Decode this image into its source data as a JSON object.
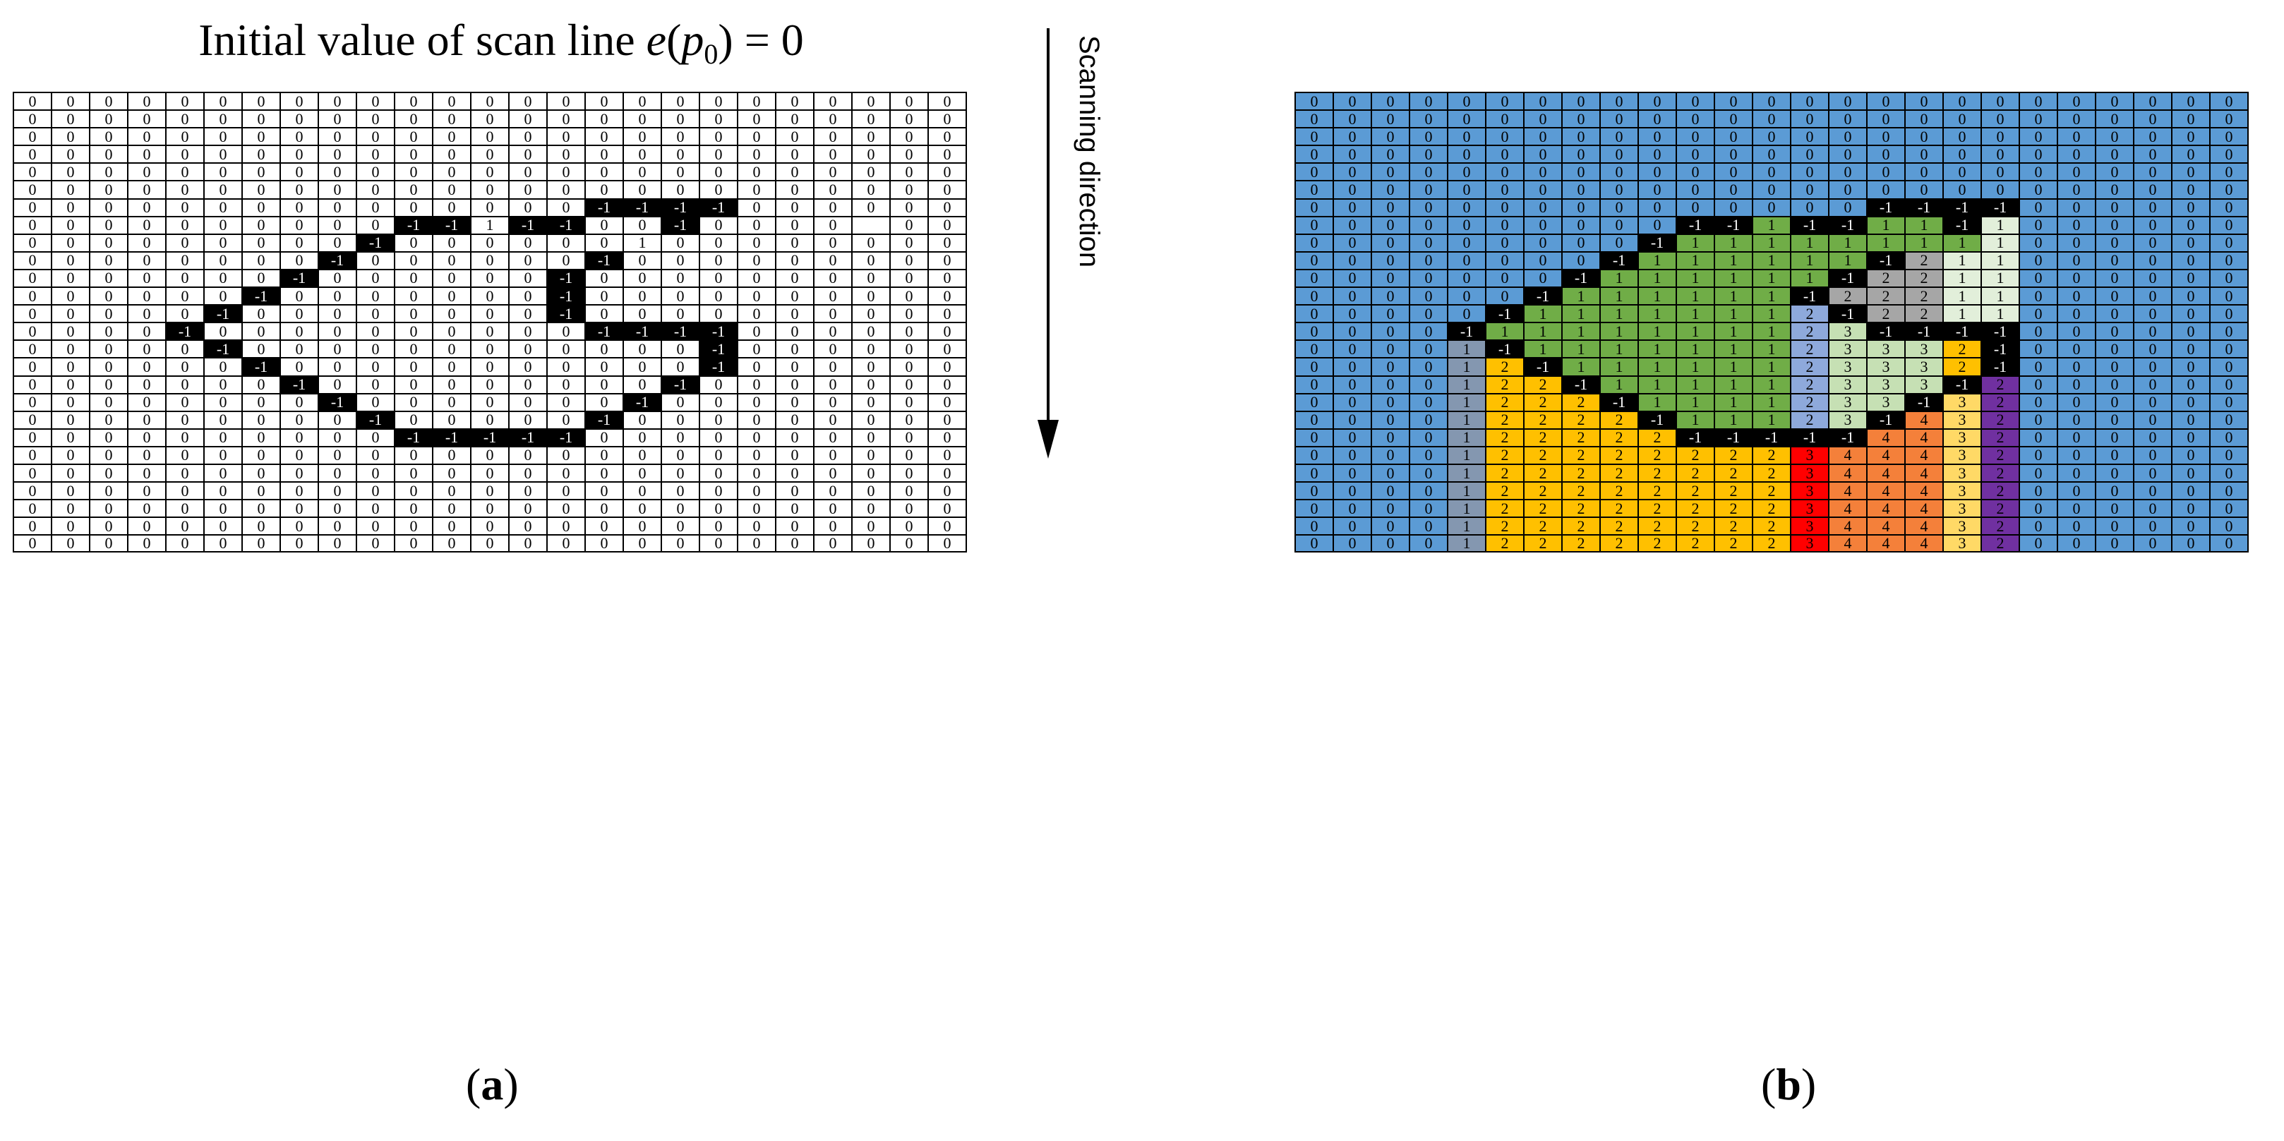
{
  "title": {
    "prefix": "Initial value of scan line ",
    "func": "e",
    "open": "(",
    "var": "p",
    "sub": "0",
    "close": ")",
    "suffix": " = 0"
  },
  "scan_label": "Scanning direction",
  "captions": {
    "a_open": "(",
    "a_letter": "a",
    "a_close": ")",
    "b_open": "(",
    "b_letter": "b",
    "b_close": ")"
  },
  "colors": {
    "-1": {
      "bg": "#000000",
      "fg": "#ffffff"
    },
    "0": {
      "bg": "#5b9bd5",
      "fg": "#000000"
    },
    "1": {
      "bg": "#70ad47",
      "fg": "#000000"
    },
    "1w": {
      "bg": "#e2efda",
      "fg": "#000000"
    },
    "1g": {
      "bg": "#8497b0",
      "fg": "#000000"
    },
    "2": {
      "bg": "#ffc000",
      "fg": "#000000"
    },
    "2g": {
      "bg": "#a6a6a6",
      "fg": "#000000"
    },
    "2l": {
      "bg": "#8ea9db",
      "fg": "#000000"
    },
    "2p": {
      "bg": "#7030a0",
      "fg": "#000000"
    },
    "3": {
      "bg": "#c6e0b4",
      "fg": "#000000"
    },
    "3r": {
      "bg": "#ff0000",
      "fg": "#000000"
    },
    "3y": {
      "bg": "#ffd966",
      "fg": "#000000"
    },
    "4": {
      "bg": "#f4803a",
      "fg": "#000000"
    }
  },
  "grid_a": [
    [
      0,
      0,
      0,
      0,
      0,
      0,
      0,
      0,
      0,
      0,
      0,
      0,
      0,
      0,
      0,
      0,
      0,
      0,
      0,
      0,
      0,
      0,
      0,
      0,
      0
    ],
    [
      0,
      0,
      0,
      0,
      0,
      0,
      0,
      0,
      0,
      0,
      0,
      0,
      0,
      0,
      0,
      0,
      0,
      0,
      0,
      0,
      0,
      0,
      0,
      0,
      0
    ],
    [
      0,
      0,
      0,
      0,
      0,
      0,
      0,
      0,
      0,
      0,
      0,
      0,
      0,
      0,
      0,
      0,
      0,
      0,
      0,
      0,
      0,
      0,
      0,
      0,
      0
    ],
    [
      0,
      0,
      0,
      0,
      0,
      0,
      0,
      0,
      0,
      0,
      0,
      0,
      0,
      0,
      0,
      0,
      0,
      0,
      0,
      0,
      0,
      0,
      0,
      0,
      0
    ],
    [
      0,
      0,
      0,
      0,
      0,
      0,
      0,
      0,
      0,
      0,
      0,
      0,
      0,
      0,
      0,
      0,
      0,
      0,
      0,
      0,
      0,
      0,
      0,
      0,
      0
    ],
    [
      0,
      0,
      0,
      0,
      0,
      0,
      0,
      0,
      0,
      0,
      0,
      0,
      0,
      0,
      0,
      0,
      0,
      0,
      0,
      0,
      0,
      0,
      0,
      0,
      0
    ],
    [
      0,
      0,
      0,
      0,
      0,
      0,
      0,
      0,
      0,
      0,
      0,
      0,
      0,
      0,
      0,
      -1,
      -1,
      -1,
      -1,
      0,
      0,
      0,
      0,
      0,
      0
    ],
    [
      0,
      0,
      0,
      0,
      0,
      0,
      0,
      0,
      0,
      0,
      -1,
      -1,
      1,
      -1,
      -1,
      0,
      0,
      -1,
      0,
      0,
      0,
      0,
      "",
      0,
      0
    ],
    [
      0,
      0,
      0,
      0,
      0,
      0,
      0,
      0,
      0,
      -1,
      0,
      0,
      0,
      0,
      0,
      0,
      1,
      0,
      0,
      0,
      0,
      0,
      0,
      0,
      0
    ],
    [
      0,
      0,
      0,
      0,
      0,
      0,
      0,
      0,
      -1,
      0,
      0,
      0,
      0,
      0,
      0,
      -1,
      0,
      0,
      0,
      0,
      0,
      0,
      0,
      0,
      0
    ],
    [
      0,
      0,
      0,
      0,
      0,
      0,
      0,
      -1,
      0,
      0,
      0,
      0,
      0,
      0,
      -1,
      0,
      0,
      0,
      0,
      0,
      0,
      0,
      0,
      0,
      0
    ],
    [
      0,
      0,
      0,
      0,
      0,
      0,
      -1,
      0,
      0,
      0,
      0,
      0,
      0,
      0,
      -1,
      0,
      0,
      0,
      0,
      0,
      0,
      0,
      0,
      0,
      0
    ],
    [
      0,
      0,
      0,
      0,
      0,
      -1,
      0,
      0,
      0,
      0,
      0,
      0,
      0,
      0,
      -1,
      0,
      0,
      0,
      0,
      0,
      0,
      0,
      0,
      0,
      0
    ],
    [
      0,
      0,
      0,
      0,
      -1,
      0,
      0,
      0,
      0,
      0,
      0,
      0,
      0,
      0,
      0,
      -1,
      -1,
      -1,
      -1,
      0,
      0,
      0,
      0,
      0,
      0
    ],
    [
      0,
      0,
      0,
      0,
      0,
      -1,
      0,
      0,
      0,
      0,
      0,
      0,
      0,
      0,
      0,
      0,
      0,
      0,
      -1,
      0,
      0,
      0,
      0,
      0,
      0
    ],
    [
      0,
      0,
      0,
      0,
      0,
      0,
      -1,
      0,
      0,
      0,
      0,
      0,
      0,
      0,
      0,
      0,
      0,
      0,
      -1,
      0,
      0,
      0,
      0,
      0,
      0
    ],
    [
      0,
      0,
      0,
      0,
      0,
      0,
      0,
      -1,
      0,
      0,
      0,
      0,
      0,
      0,
      0,
      0,
      0,
      -1,
      0,
      0,
      0,
      0,
      0,
      0,
      0
    ],
    [
      0,
      0,
      0,
      0,
      0,
      0,
      0,
      0,
      -1,
      0,
      0,
      0,
      0,
      0,
      0,
      0,
      -1,
      0,
      0,
      0,
      0,
      0,
      0,
      0,
      0
    ],
    [
      0,
      0,
      0,
      0,
      0,
      0,
      0,
      0,
      0,
      -1,
      0,
      0,
      0,
      0,
      0,
      -1,
      0,
      0,
      0,
      0,
      0,
      0,
      0,
      0,
      0
    ],
    [
      0,
      0,
      0,
      0,
      0,
      0,
      0,
      0,
      0,
      0,
      -1,
      -1,
      -1,
      -1,
      -1,
      0,
      0,
      0,
      0,
      0,
      0,
      0,
      0,
      0,
      0
    ],
    [
      0,
      0,
      0,
      0,
      0,
      0,
      0,
      0,
      0,
      0,
      0,
      0,
      0,
      0,
      0,
      0,
      0,
      0,
      0,
      0,
      0,
      0,
      0,
      0,
      0
    ],
    [
      0,
      0,
      0,
      0,
      0,
      0,
      0,
      0,
      0,
      0,
      0,
      0,
      0,
      0,
      0,
      0,
      0,
      0,
      0,
      0,
      0,
      0,
      0,
      0,
      0
    ],
    [
      0,
      0,
      0,
      0,
      0,
      0,
      0,
      0,
      0,
      0,
      0,
      0,
      0,
      0,
      0,
      0,
      0,
      0,
      0,
      0,
      0,
      0,
      0,
      0,
      0
    ],
    [
      0,
      0,
      0,
      0,
      0,
      0,
      0,
      0,
      0,
      0,
      0,
      0,
      0,
      0,
      0,
      0,
      0,
      0,
      0,
      0,
      0,
      0,
      0,
      0,
      0
    ],
    [
      0,
      0,
      0,
      0,
      0,
      0,
      0,
      0,
      0,
      0,
      0,
      0,
      0,
      0,
      0,
      0,
      0,
      0,
      0,
      0,
      0,
      0,
      0,
      0,
      0
    ],
    [
      0,
      0,
      0,
      0,
      0,
      0,
      0,
      0,
      0,
      0,
      0,
      0,
      0,
      0,
      0,
      0,
      0,
      0,
      0,
      0,
      0,
      0,
      0,
      0,
      0
    ]
  ],
  "grid_b": [
    [
      "0",
      "0",
      "0",
      "0",
      "0",
      "0",
      "0",
      "0",
      "0",
      "0",
      "0",
      "0",
      "0",
      "0",
      "0",
      "0",
      "0",
      "0",
      "0",
      "0",
      "0",
      "0",
      "0",
      "0",
      "0"
    ],
    [
      "0",
      "0",
      "0",
      "0",
      "0",
      "0",
      "0",
      "0",
      "0",
      "0",
      "0",
      "0",
      "0",
      "0",
      "0",
      "0",
      "0",
      "0",
      "0",
      "0",
      "0",
      "0",
      "0",
      "0",
      "0"
    ],
    [
      "0",
      "0",
      "0",
      "0",
      "0",
      "0",
      "0",
      "0",
      "0",
      "0",
      "0",
      "0",
      "0",
      "0",
      "0",
      "0",
      "0",
      "0",
      "0",
      "0",
      "0",
      "0",
      "0",
      "0",
      "0"
    ],
    [
      "0",
      "0",
      "0",
      "0",
      "0",
      "0",
      "0",
      "0",
      "0",
      "0",
      "0",
      "0",
      "0",
      "0",
      "0",
      "0",
      "0",
      "0",
      "0",
      "0",
      "0",
      "0",
      "0",
      "0",
      "0"
    ],
    [
      "0",
      "0",
      "0",
      "0",
      "0",
      "0",
      "0",
      "0",
      "0",
      "0",
      "0",
      "0",
      "0",
      "0",
      "0",
      "0",
      "0",
      "0",
      "0",
      "0",
      "0",
      "0",
      "0",
      "0",
      "0"
    ],
    [
      "0",
      "0",
      "0",
      "0",
      "0",
      "0",
      "0",
      "0",
      "0",
      "0",
      "0",
      "0",
      "0",
      "0",
      "0",
      "0",
      "0",
      "0",
      "0",
      "0",
      "0",
      "0",
      "0",
      "0",
      "0"
    ],
    [
      "0",
      "0",
      "0",
      "0",
      "0",
      "0",
      "0",
      "0",
      "0",
      "0",
      "0",
      "0",
      "0",
      "0",
      "0",
      "-1",
      "-1",
      "-1",
      "-1",
      "0",
      "0",
      "0",
      "0",
      "0",
      "0"
    ],
    [
      "0",
      "0",
      "0",
      "0",
      "0",
      "0",
      "0",
      "0",
      "0",
      "0",
      "-1",
      "-1",
      "1",
      "-1",
      "-1",
      "1",
      "1",
      "-1",
      "1w",
      "0",
      "0",
      "0",
      "0",
      "0",
      "0"
    ],
    [
      "0",
      "0",
      "0",
      "0",
      "0",
      "0",
      "0",
      "0",
      "0",
      "-1",
      "1",
      "1",
      "1",
      "1",
      "1",
      "1",
      "1",
      "1",
      "1w",
      "0",
      "0",
      "0",
      "0",
      "0",
      "0"
    ],
    [
      "0",
      "0",
      "0",
      "0",
      "0",
      "0",
      "0",
      "0",
      "-1",
      "1",
      "1",
      "1",
      "1",
      "1",
      "1",
      "-1",
      "2g",
      "1w",
      "1w",
      "0",
      "0",
      "0",
      "0",
      "0",
      "0"
    ],
    [
      "0",
      "0",
      "0",
      "0",
      "0",
      "0",
      "0",
      "-1",
      "1",
      "1",
      "1",
      "1",
      "1",
      "1",
      "-1",
      "2g",
      "2g",
      "1w",
      "1w",
      "0",
      "0",
      "0",
      "0",
      "0",
      "0"
    ],
    [
      "0",
      "0",
      "0",
      "0",
      "0",
      "0",
      "-1",
      "1",
      "1",
      "1",
      "1",
      "1",
      "1",
      "-1",
      "2g",
      "2g",
      "2g",
      "1w",
      "1w",
      "0",
      "0",
      "0",
      "0",
      "0",
      "0"
    ],
    [
      "0",
      "0",
      "0",
      "0",
      "0",
      "-1",
      "1",
      "1",
      "1",
      "1",
      "1",
      "1",
      "1",
      "2l",
      "-1",
      "2g",
      "2g",
      "1w",
      "1w",
      "0",
      "0",
      "0",
      "0",
      "0",
      "0"
    ],
    [
      "0",
      "0",
      "0",
      "0",
      "-1",
      "1",
      "1",
      "1",
      "1",
      "1",
      "1",
      "1",
      "1",
      "2l",
      "3",
      "-1",
      "-1",
      "-1",
      "-1",
      "0",
      "0",
      "0",
      "0",
      "0",
      "0"
    ],
    [
      "0",
      "0",
      "0",
      "0",
      "1g",
      "-1",
      "1",
      "1",
      "1",
      "1",
      "1",
      "1",
      "1",
      "2l",
      "3",
      "3",
      "3",
      "2",
      "-1",
      "0",
      "0",
      "0",
      "0",
      "0",
      "0"
    ],
    [
      "0",
      "0",
      "0",
      "0",
      "1g",
      "2",
      "-1",
      "1",
      "1",
      "1",
      "1",
      "1",
      "1",
      "2l",
      "3",
      "3",
      "3",
      "2",
      "-1",
      "0",
      "0",
      "0",
      "0",
      "0",
      "0"
    ],
    [
      "0",
      "0",
      "0",
      "0",
      "1g",
      "2",
      "2",
      "-1",
      "1",
      "1",
      "1",
      "1",
      "1",
      "2l",
      "3",
      "3",
      "3",
      "-1",
      "2p",
      "0",
      "0",
      "0",
      "0",
      "0",
      "0"
    ],
    [
      "0",
      "0",
      "0",
      "0",
      "1g",
      "2",
      "2",
      "2",
      "-1",
      "1",
      "1",
      "1",
      "1",
      "2l",
      "3",
      "3",
      "-1",
      "3y",
      "2p",
      "0",
      "0",
      "0",
      "0",
      "0",
      "0"
    ],
    [
      "0",
      "0",
      "0",
      "0",
      "1g",
      "2",
      "2",
      "2",
      "2",
      "-1",
      "1",
      "1",
      "1",
      "2l",
      "3",
      "-1",
      "4",
      "3y",
      "2p",
      "0",
      "0",
      "0",
      "0",
      "0",
      "0"
    ],
    [
      "0",
      "0",
      "0",
      "0",
      "1g",
      "2",
      "2",
      "2",
      "2",
      "2",
      "-1",
      "-1",
      "-1",
      "-1",
      "-1",
      "4",
      "4",
      "3y",
      "2p",
      "0",
      "0",
      "0",
      "0",
      "0",
      "0"
    ],
    [
      "0",
      "0",
      "0",
      "0",
      "1g",
      "2",
      "2",
      "2",
      "2",
      "2",
      "2",
      "2",
      "2",
      "3r",
      "4",
      "4",
      "4",
      "3y",
      "2p",
      "0",
      "0",
      "0",
      "0",
      "0",
      "0"
    ],
    [
      "0",
      "0",
      "0",
      "0",
      "1g",
      "2",
      "2",
      "2",
      "2",
      "2",
      "2",
      "2",
      "2",
      "3r",
      "4",
      "4",
      "4",
      "3y",
      "2p",
      "0",
      "0",
      "0",
      "0",
      "0",
      "0"
    ],
    [
      "0",
      "0",
      "0",
      "0",
      "1g",
      "2",
      "2",
      "2",
      "2",
      "2",
      "2",
      "2",
      "2",
      "3r",
      "4",
      "4",
      "4",
      "3y",
      "2p",
      "0",
      "0",
      "0",
      "0",
      "0",
      "0"
    ],
    [
      "0",
      "0",
      "0",
      "0",
      "1g",
      "2",
      "2",
      "2",
      "2",
      "2",
      "2",
      "2",
      "2",
      "3r",
      "4",
      "4",
      "4",
      "3y",
      "2p",
      "0",
      "0",
      "0",
      "0",
      "0",
      "0"
    ],
    [
      "0",
      "0",
      "0",
      "0",
      "1g",
      "2",
      "2",
      "2",
      "2",
      "2",
      "2",
      "2",
      "2",
      "3r",
      "4",
      "4",
      "4",
      "3y",
      "2p",
      "0",
      "0",
      "0",
      "0",
      "0",
      "0"
    ],
    [
      "0",
      "0",
      "0",
      "0",
      "1g",
      "2",
      "2",
      "2",
      "2",
      "2",
      "2",
      "2",
      "2",
      "3r",
      "4",
      "4",
      "4",
      "3y",
      "2p",
      "0",
      "0",
      "0",
      "0",
      "0",
      "0"
    ]
  ]
}
